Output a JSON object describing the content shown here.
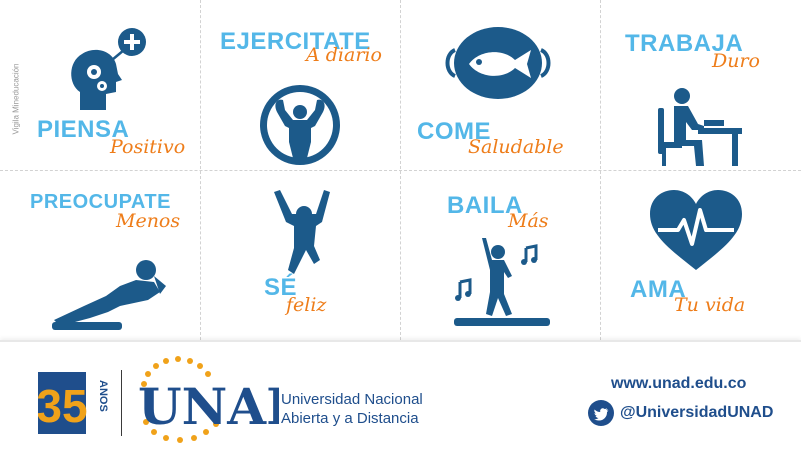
{
  "side_label": "Vigila Mineducación",
  "cards": [
    {
      "title": "PIENSA",
      "subtitle": "Positivo",
      "icon": "head-gears-icon"
    },
    {
      "title": "EJERCITATE",
      "subtitle": "A diario",
      "icon": "strongman-icon"
    },
    {
      "title": "COME",
      "subtitle": "Saludable",
      "icon": "fish-plate-icon"
    },
    {
      "title": "TRABAJA",
      "subtitle": "Duro",
      "icon": "desk-worker-icon"
    },
    {
      "title": "PREOCUPATE",
      "subtitle": "Menos",
      "icon": "reclining-person-icon"
    },
    {
      "title": "SÉ",
      "subtitle": "feliz",
      "icon": "jumping-person-icon"
    },
    {
      "title": "BAILA",
      "subtitle": "Más",
      "icon": "dancer-icon"
    },
    {
      "title": "AMA",
      "subtitle": "Tu vida",
      "icon": "heart-pulse-icon"
    }
  ],
  "footer": {
    "anniversary_number": "35",
    "anniversary_word": "AÑOS",
    "logo_text": "UNAD",
    "university_line1": "Universidad Nacional",
    "university_line2": "Abierta y a Distancia",
    "website": "www.unad.edu.co",
    "twitter_handle": "@UniversidadUNAD"
  },
  "colors": {
    "title": "#53b7e8",
    "subtitle": "#ee7d1a",
    "icon": "#1c5a8a",
    "brand_blue": "#1f4e8c",
    "brand_orange": "#f0a21a"
  }
}
